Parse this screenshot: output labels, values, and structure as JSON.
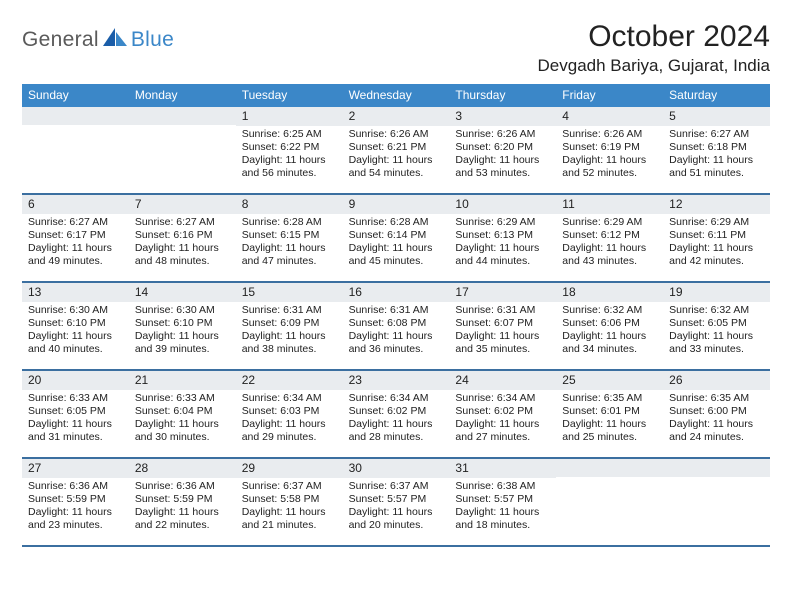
{
  "brand": {
    "part1": "General",
    "part2": "Blue"
  },
  "month_title": "October 2024",
  "location": "Devgadh Bariya, Gujarat, India",
  "colors": {
    "header_bg": "#3b87c8",
    "daynum_bg": "#e9ecef",
    "rule": "#3b6fa0",
    "text": "#222222",
    "logo_gray": "#5a5a5a"
  },
  "dow": [
    "Sunday",
    "Monday",
    "Tuesday",
    "Wednesday",
    "Thursday",
    "Friday",
    "Saturday"
  ],
  "weeks": [
    [
      null,
      null,
      {
        "n": "1",
        "sr": "6:25 AM",
        "ss": "6:22 PM",
        "dl": "11 hours and 56 minutes."
      },
      {
        "n": "2",
        "sr": "6:26 AM",
        "ss": "6:21 PM",
        "dl": "11 hours and 54 minutes."
      },
      {
        "n": "3",
        "sr": "6:26 AM",
        "ss": "6:20 PM",
        "dl": "11 hours and 53 minutes."
      },
      {
        "n": "4",
        "sr": "6:26 AM",
        "ss": "6:19 PM",
        "dl": "11 hours and 52 minutes."
      },
      {
        "n": "5",
        "sr": "6:27 AM",
        "ss": "6:18 PM",
        "dl": "11 hours and 51 minutes."
      }
    ],
    [
      {
        "n": "6",
        "sr": "6:27 AM",
        "ss": "6:17 PM",
        "dl": "11 hours and 49 minutes."
      },
      {
        "n": "7",
        "sr": "6:27 AM",
        "ss": "6:16 PM",
        "dl": "11 hours and 48 minutes."
      },
      {
        "n": "8",
        "sr": "6:28 AM",
        "ss": "6:15 PM",
        "dl": "11 hours and 47 minutes."
      },
      {
        "n": "9",
        "sr": "6:28 AM",
        "ss": "6:14 PM",
        "dl": "11 hours and 45 minutes."
      },
      {
        "n": "10",
        "sr": "6:29 AM",
        "ss": "6:13 PM",
        "dl": "11 hours and 44 minutes."
      },
      {
        "n": "11",
        "sr": "6:29 AM",
        "ss": "6:12 PM",
        "dl": "11 hours and 43 minutes."
      },
      {
        "n": "12",
        "sr": "6:29 AM",
        "ss": "6:11 PM",
        "dl": "11 hours and 42 minutes."
      }
    ],
    [
      {
        "n": "13",
        "sr": "6:30 AM",
        "ss": "6:10 PM",
        "dl": "11 hours and 40 minutes."
      },
      {
        "n": "14",
        "sr": "6:30 AM",
        "ss": "6:10 PM",
        "dl": "11 hours and 39 minutes."
      },
      {
        "n": "15",
        "sr": "6:31 AM",
        "ss": "6:09 PM",
        "dl": "11 hours and 38 minutes."
      },
      {
        "n": "16",
        "sr": "6:31 AM",
        "ss": "6:08 PM",
        "dl": "11 hours and 36 minutes."
      },
      {
        "n": "17",
        "sr": "6:31 AM",
        "ss": "6:07 PM",
        "dl": "11 hours and 35 minutes."
      },
      {
        "n": "18",
        "sr": "6:32 AM",
        "ss": "6:06 PM",
        "dl": "11 hours and 34 minutes."
      },
      {
        "n": "19",
        "sr": "6:32 AM",
        "ss": "6:05 PM",
        "dl": "11 hours and 33 minutes."
      }
    ],
    [
      {
        "n": "20",
        "sr": "6:33 AM",
        "ss": "6:05 PM",
        "dl": "11 hours and 31 minutes."
      },
      {
        "n": "21",
        "sr": "6:33 AM",
        "ss": "6:04 PM",
        "dl": "11 hours and 30 minutes."
      },
      {
        "n": "22",
        "sr": "6:34 AM",
        "ss": "6:03 PM",
        "dl": "11 hours and 29 minutes."
      },
      {
        "n": "23",
        "sr": "6:34 AM",
        "ss": "6:02 PM",
        "dl": "11 hours and 28 minutes."
      },
      {
        "n": "24",
        "sr": "6:34 AM",
        "ss": "6:02 PM",
        "dl": "11 hours and 27 minutes."
      },
      {
        "n": "25",
        "sr": "6:35 AM",
        "ss": "6:01 PM",
        "dl": "11 hours and 25 minutes."
      },
      {
        "n": "26",
        "sr": "6:35 AM",
        "ss": "6:00 PM",
        "dl": "11 hours and 24 minutes."
      }
    ],
    [
      {
        "n": "27",
        "sr": "6:36 AM",
        "ss": "5:59 PM",
        "dl": "11 hours and 23 minutes."
      },
      {
        "n": "28",
        "sr": "6:36 AM",
        "ss": "5:59 PM",
        "dl": "11 hours and 22 minutes."
      },
      {
        "n": "29",
        "sr": "6:37 AM",
        "ss": "5:58 PM",
        "dl": "11 hours and 21 minutes."
      },
      {
        "n": "30",
        "sr": "6:37 AM",
        "ss": "5:57 PM",
        "dl": "11 hours and 20 minutes."
      },
      {
        "n": "31",
        "sr": "6:38 AM",
        "ss": "5:57 PM",
        "dl": "11 hours and 18 minutes."
      },
      null,
      null
    ]
  ],
  "labels": {
    "sunrise": "Sunrise:",
    "sunset": "Sunset:",
    "daylight": "Daylight:"
  }
}
